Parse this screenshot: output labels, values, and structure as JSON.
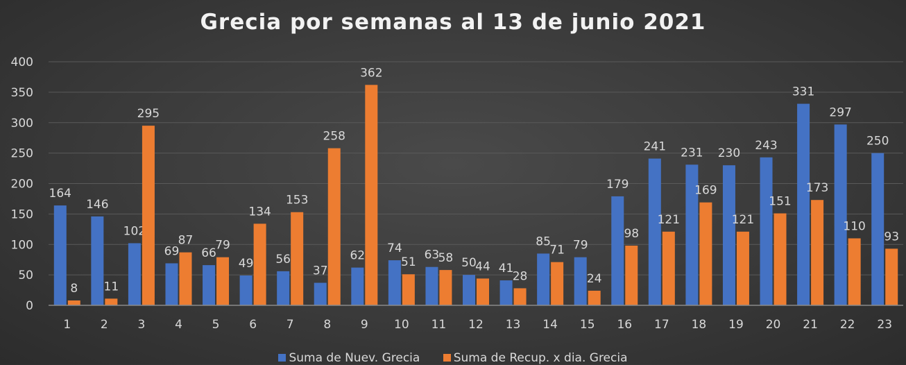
{
  "chart_data": {
    "type": "bar",
    "title": "Grecia por semanas al 13 de junio 2021",
    "categories": [
      "1",
      "2",
      "3",
      "4",
      "5",
      "6",
      "7",
      "8",
      "9",
      "10",
      "11",
      "12",
      "13",
      "14",
      "15",
      "16",
      "17",
      "18",
      "19",
      "20",
      "21",
      "22",
      "23"
    ],
    "series": [
      {
        "name": "Suma de Nuev. Grecia",
        "color": "#4472c4",
        "values": [
          164,
          146,
          102,
          69,
          66,
          49,
          56,
          37,
          62,
          74,
          63,
          50,
          41,
          85,
          79,
          179,
          241,
          231,
          230,
          243,
          331,
          297,
          250
        ]
      },
      {
        "name": "Suma de Recup. x dia. Grecia",
        "color": "#ed7d31",
        "values": [
          8,
          11,
          295,
          87,
          79,
          134,
          153,
          258,
          362,
          51,
          58,
          44,
          28,
          71,
          24,
          98,
          121,
          169,
          121,
          151,
          173,
          110,
          93
        ]
      }
    ],
    "ylim": [
      0,
      400
    ],
    "yticks": [
      0,
      50,
      100,
      150,
      200,
      250,
      300,
      350,
      400
    ],
    "grid": true,
    "legend": "bottom",
    "data_labels": true
  }
}
